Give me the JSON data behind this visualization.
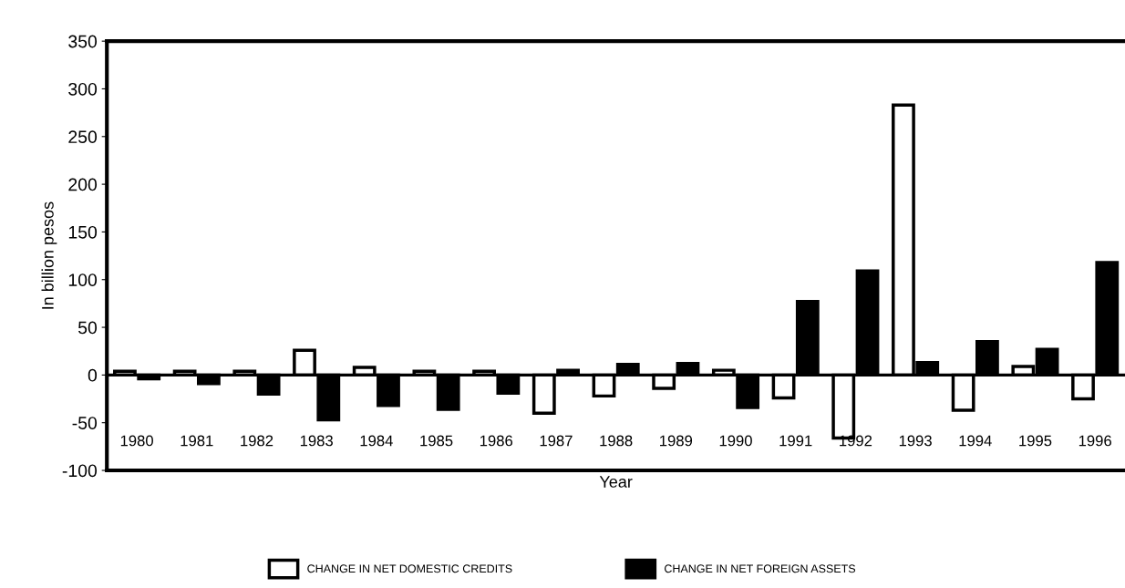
{
  "chart_data": {
    "type": "bar",
    "xlabel": "Year",
    "ylabel": "In billion pesos",
    "categories": [
      "1980",
      "1981",
      "1982",
      "1983",
      "1984",
      "1985",
      "1986",
      "1987",
      "1988",
      "1989",
      "1990",
      "1991",
      "1992",
      "1993",
      "1994",
      "1995",
      "1996"
    ],
    "series": [
      {
        "name": "CHANGE IN NET DOMESTIC CREDITS",
        "color": "#ffffff",
        "values": [
          4,
          4,
          4,
          26,
          8,
          4,
          4,
          -40,
          -22,
          -14,
          5,
          -24,
          -66,
          283,
          -37,
          9,
          -25
        ]
      },
      {
        "name": "CHANGE IN NET FOREIGN ASSETS",
        "color": "#000000",
        "values": [
          -4,
          -9,
          -20,
          -47,
          -32,
          -36,
          -19,
          5,
          11,
          12,
          -34,
          77,
          109,
          13,
          35,
          27,
          118
        ]
      }
    ],
    "ylim": [
      -100,
      350
    ],
    "yticks": [
      -100,
      -50,
      0,
      50,
      100,
      150,
      200,
      250,
      300,
      350
    ],
    "ref_lines": [
      {
        "axis": "y",
        "value": 0,
        "color": "#000000"
      }
    ],
    "grid": false,
    "legend": "bottom"
  }
}
